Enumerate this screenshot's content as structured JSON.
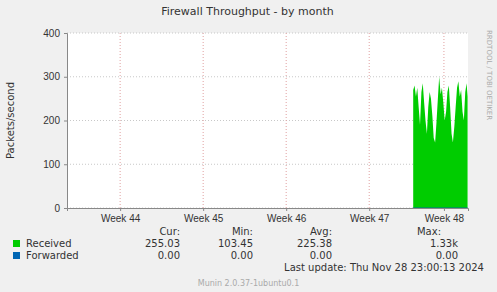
{
  "chart_data": {
    "type": "area",
    "title": "Firewall Throughput - by month",
    "y_label": "Packets/second",
    "xlim": [
      43.86,
      48.69
    ],
    "xticks": [
      {
        "value": 44.5,
        "label": "Week 44"
      },
      {
        "value": 45.5,
        "label": "Week 45"
      },
      {
        "value": 46.5,
        "label": "Week 46"
      },
      {
        "value": 47.5,
        "label": "Week 47"
      },
      {
        "value": 48.4,
        "label": "Week 48"
      }
    ],
    "ylim": [
      0,
      400
    ],
    "yticks": [
      0,
      100,
      200,
      300,
      400
    ],
    "grid": true,
    "x": [
      48.03,
      48.046,
      48.063,
      48.079,
      48.096,
      48.112,
      48.129,
      48.145,
      48.162,
      48.178,
      48.195,
      48.211,
      48.228,
      48.244,
      48.261,
      48.277,
      48.294,
      48.31,
      48.327,
      48.343,
      48.36,
      48.376,
      48.393,
      48.409,
      48.426,
      48.442,
      48.459,
      48.475,
      48.492,
      48.508,
      48.525,
      48.541,
      48.558,
      48.574,
      48.591,
      48.607,
      48.624,
      48.64,
      48.657,
      48.673,
      48.685
    ],
    "series": [
      {
        "name": "Received",
        "color": "#00cc00",
        "type": "area",
        "values": [
          270,
          280,
          255,
          275,
          230,
          190,
          265,
          285,
          240,
          200,
          170,
          230,
          265,
          250,
          210,
          160,
          150,
          195,
          250,
          300,
          260,
          275,
          240,
          200,
          220,
          265,
          280,
          230,
          170,
          150,
          185,
          230,
          275,
          290,
          255,
          270,
          220,
          200,
          265,
          285,
          255
        ],
        "stats": [
          255.03,
          103.45,
          225.38,
          1330
        ],
        "stats_labels": [
          "255.03",
          "103.45",
          "225.38",
          "1.33k"
        ]
      },
      {
        "name": "Forwarded",
        "color": "#0066b3",
        "type": "line",
        "values": [
          0,
          0,
          0,
          0,
          0,
          0,
          0,
          0,
          0,
          0,
          0,
          0,
          0,
          0,
          0,
          0,
          0,
          0,
          0,
          0,
          0,
          0,
          0,
          0,
          0,
          0,
          0,
          0,
          0,
          0,
          0,
          0,
          0,
          0,
          0,
          0,
          0,
          0,
          0,
          0,
          0
        ],
        "stats": [
          0,
          0,
          0,
          0
        ],
        "stats_labels": [
          "0.00",
          "0.00",
          "0.00",
          "0.00"
        ]
      }
    ],
    "stats_headers": [
      "Cur:",
      "Min:",
      "Avg:",
      "Max:"
    ],
    "last_update": "Last update: Thu Nov 28 23:00:13 2024",
    "footer": "Munin 2.0.37-1ubuntu0.1",
    "side_label": "RRDTOOL / TOBI OETIKER"
  }
}
